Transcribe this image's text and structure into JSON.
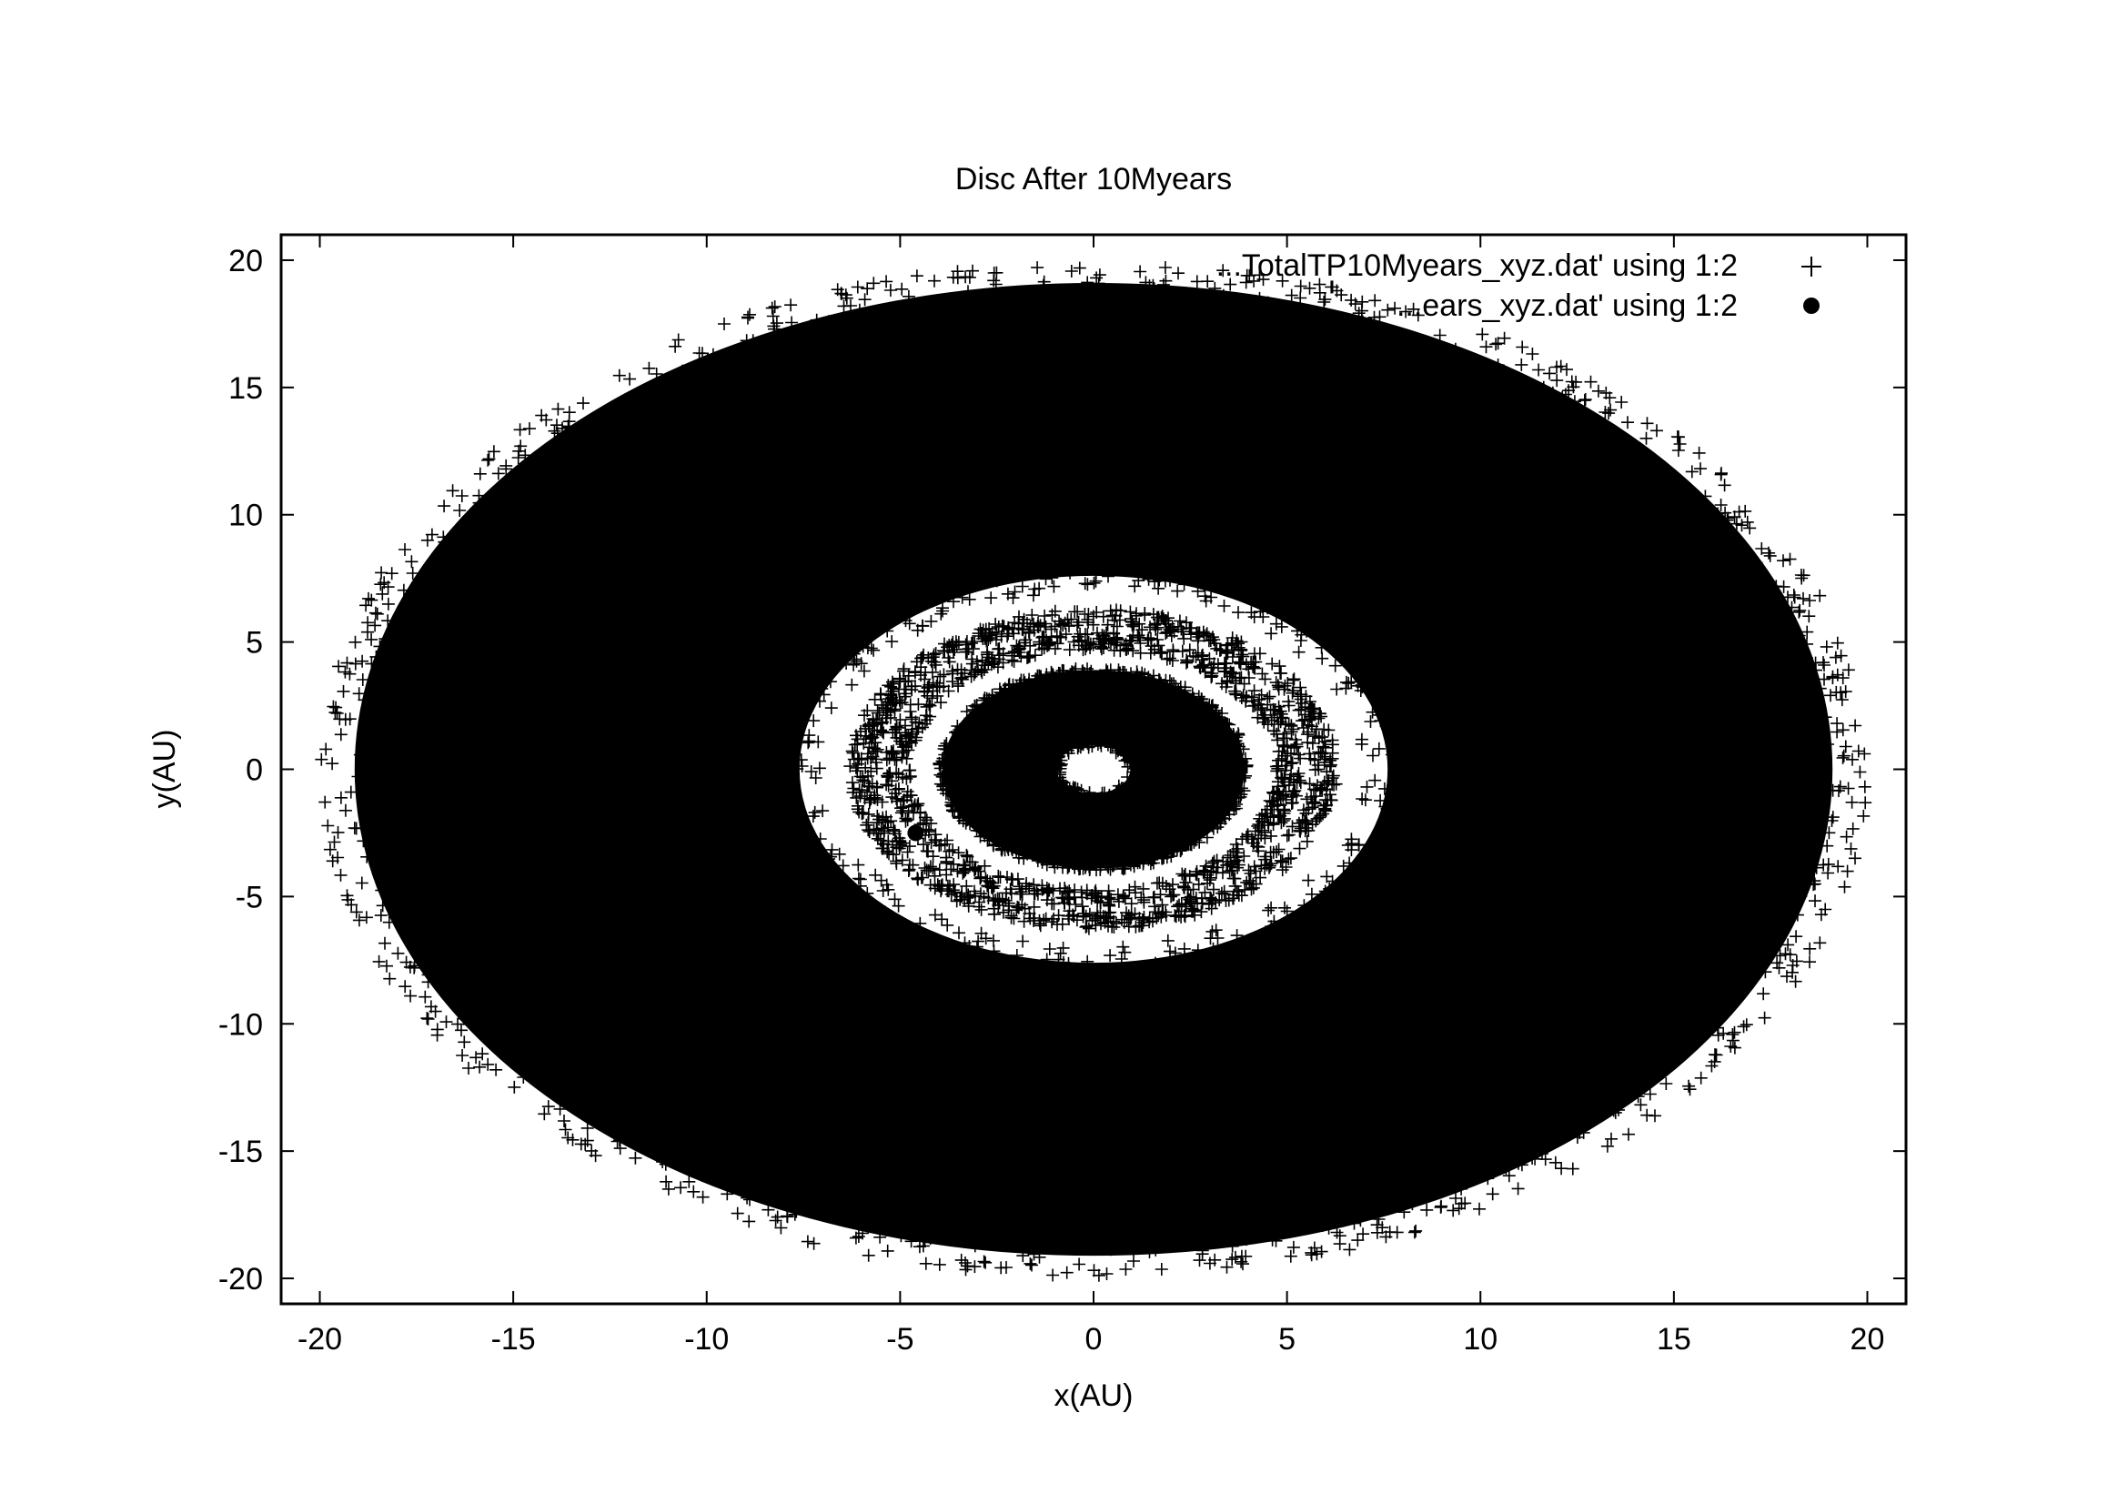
{
  "chart_data": {
    "type": "scatter",
    "title": "Disc After 10Myears",
    "xlabel": "x(AU)",
    "ylabel": "y(AU)",
    "xlim": [
      -21,
      21
    ],
    "ylim": [
      -21,
      21
    ],
    "xticks": [
      -20,
      -15,
      -10,
      -5,
      0,
      5,
      10,
      15,
      20
    ],
    "yticks": [
      -20,
      -15,
      -10,
      -5,
      0,
      5,
      10,
      15,
      20
    ],
    "grid": false,
    "legend_position": "top-right",
    "series": [
      {
        "name": "...TotalTP10Myears_xyz.dat' using 1:2",
        "marker": "plus",
        "color": "#000000",
        "description": "test particles; outer disc 7–20 AU, gap ~4.5–7 AU with narrow rings at ~5 and ~6 AU, inner filled disc 0.8–4 AU, central hole",
        "bands_au": [
          [
            0.85,
            4.0
          ],
          [
            4.7,
            5.4
          ],
          [
            5.6,
            6.3
          ],
          [
            7.0,
            20.0
          ]
        ],
        "x_scale": 1.0,
        "y_scale": 1.0
      },
      {
        "name": "...ears_xyz.dat' using 1:2",
        "marker": "filled-circle",
        "color": "#000000",
        "points": [
          {
            "x": -4.6,
            "y": -2.5
          }
        ]
      }
    ]
  }
}
